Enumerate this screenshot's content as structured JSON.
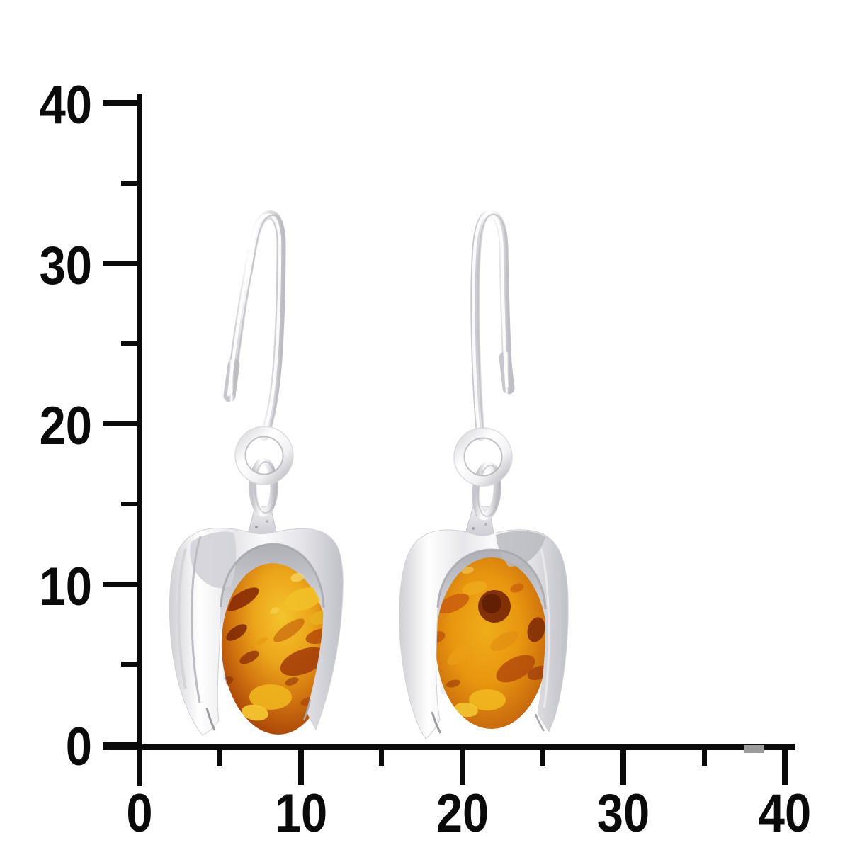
{
  "scale": {
    "axis_color": "#0a0a0a",
    "x_tick_labels": [
      "0",
      "10",
      "20",
      "30",
      "40"
    ],
    "y_tick_labels": [
      "0",
      "10",
      "20",
      "30",
      "40"
    ],
    "x_major_tick_values": [
      0,
      10,
      20,
      30,
      40
    ],
    "y_major_tick_values": [
      0,
      10,
      20,
      30,
      40
    ],
    "x_minor_tick_values": [
      5,
      15,
      25,
      35
    ],
    "y_minor_tick_values": [
      5,
      15,
      25,
      35
    ],
    "x_range": [
      0,
      40
    ],
    "y_range": [
      0,
      40
    ]
  },
  "photo": {
    "description": "Pair of polished silver french-hook dangle earrings, each with an oval cognac amber stone set in a horseshoe-shaped silver mount, hanging from round jump rings",
    "background": "#ffffff",
    "colors": {
      "silver_highlight": "#ffffff",
      "silver_base": "#f1f1f4",
      "silver_shadow": "#c7c7cd",
      "silver_deep": "#9a9aa1",
      "amber_bright": "#f4c42c",
      "amber_gold": "#eca51a",
      "amber_mid": "#d0720f",
      "amber_deep": "#a64108",
      "amber_dark": "#7c2806"
    }
  }
}
